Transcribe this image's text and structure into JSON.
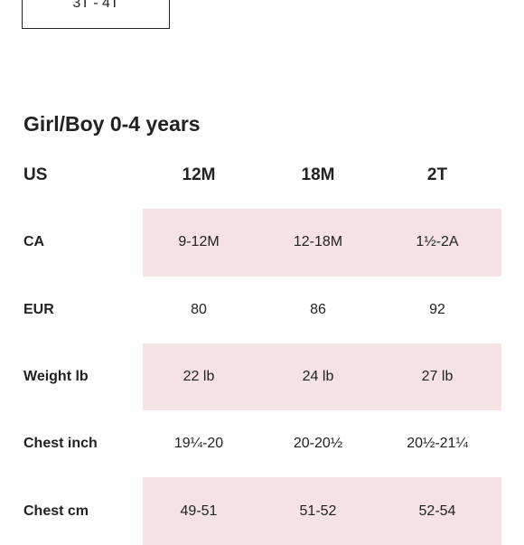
{
  "selected_size": "3T - 4T",
  "section_title": "Girl/Boy 0-4 years",
  "table": {
    "header": {
      "label": "US",
      "cols": [
        "12M",
        "18M",
        "2T"
      ]
    },
    "rows": [
      {
        "label": "CA",
        "values": [
          "9-12M",
          "12-18M",
          "1½-2A"
        ]
      },
      {
        "label": "EUR",
        "values": [
          "80",
          "86",
          "92"
        ]
      },
      {
        "label": "Weight lb",
        "values": [
          "22 lb",
          "24 lb",
          "27 lb"
        ]
      },
      {
        "label": "Chest inch",
        "values": [
          "19¼-20",
          "20-20½",
          "20½-21¼"
        ]
      },
      {
        "label": "Chest cm",
        "values": [
          "49-51",
          "51-52",
          "52-54"
        ]
      }
    ]
  },
  "colors": {
    "shaded_row": "#f5e3e3",
    "text": "#222222"
  }
}
